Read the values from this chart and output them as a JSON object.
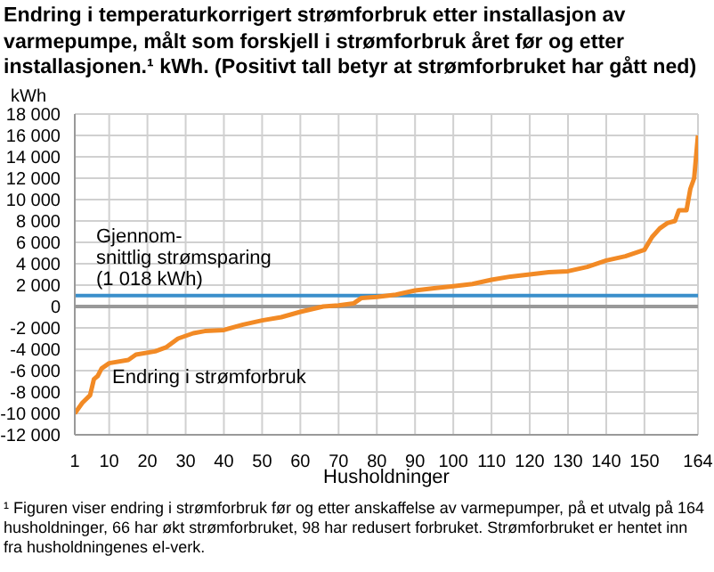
{
  "chart_data": {
    "type": "line",
    "title": "Endring i temperaturkorrigert strømforbruk etter installasjon av varmepumpe, målt som forskjell i strømforbruk året før og etter installasjonen.¹ kWh. (Positivt tall betyr at strømforbruket har gått ned)",
    "xlabel": "Husholdninger",
    "ylabel": "kWh",
    "series": [
      {
        "name": "Endring i strømforbruk",
        "color": "#f28a25",
        "x": [
          1,
          3,
          5,
          6,
          7,
          8,
          10,
          15,
          17,
          22,
          25,
          28,
          32,
          35,
          40,
          45,
          50,
          55,
          60,
          66,
          70,
          74,
          76,
          80,
          85,
          90,
          95,
          100,
          105,
          110,
          115,
          120,
          125,
          130,
          135,
          140,
          145,
          150,
          152,
          154,
          156,
          158,
          159,
          161,
          162,
          163,
          164
        ],
        "values": [
          -10000,
          -9000,
          -8300,
          -6800,
          -6500,
          -5800,
          -5300,
          -5000,
          -4500,
          -4200,
          -3800,
          -3000,
          -2500,
          -2300,
          -2200,
          -1700,
          -1300,
          -1000,
          -500,
          0,
          100,
          300,
          800,
          900,
          1100,
          1500,
          1700,
          1900,
          2100,
          2500,
          2800,
          3000,
          3200,
          3300,
          3700,
          4300,
          4700,
          5300,
          6500,
          7300,
          7800,
          8000,
          9000,
          9000,
          11000,
          12000,
          16000
        ]
      }
    ],
    "xlim": [
      1,
      164
    ],
    "xticks": [
      1,
      10,
      20,
      30,
      40,
      50,
      60,
      70,
      80,
      90,
      100,
      110,
      120,
      130,
      140,
      150,
      164
    ],
    "ylim": [
      -12000,
      18000
    ],
    "yticks": [
      -12000,
      -10000,
      -8000,
      -6000,
      -4000,
      -2000,
      0,
      2000,
      4000,
      6000,
      8000,
      10000,
      12000,
      14000,
      16000,
      18000
    ],
    "ref_lines": [
      {
        "axis": "y",
        "value": 1018,
        "label": "Gjennom-\nsnittlig strømsparing\n(1 018 kWh)",
        "color": "#3a8fcb"
      }
    ],
    "grid": true,
    "legend": false,
    "marker": "none",
    "line_style": "solid",
    "annotations": [
      "¹ Figuren viser endring i strømforbruk før og etter anskaffelse av varmepumper, på et utvalg på 164 husholdninger, 66 har økt strømforbruket, 98 har redusert forbruket. Strømforbruket er hentet inn fra husholdningenes el-verk."
    ]
  }
}
